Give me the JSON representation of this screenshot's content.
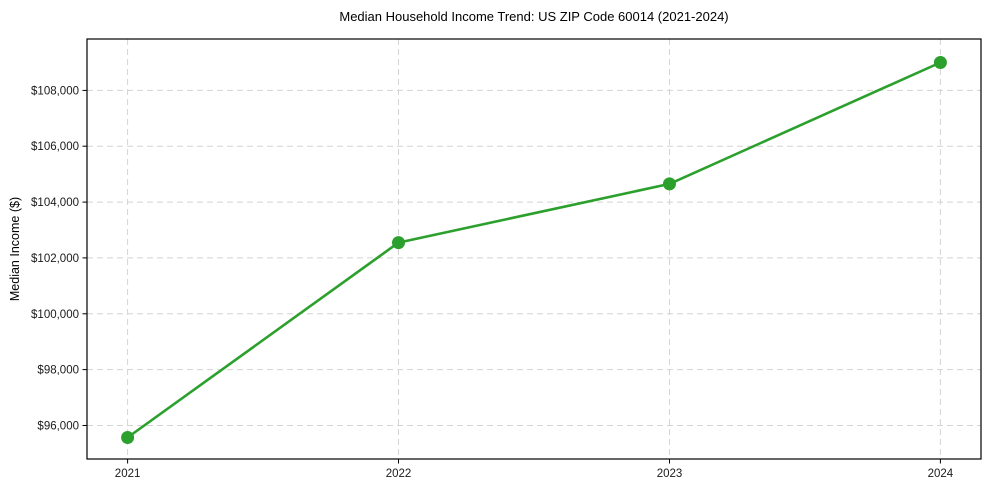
{
  "figure": {
    "title": "Median Household Income Trend: US ZIP Code 60014 (2021-2024)",
    "y_axis_label": "Median Income ($)"
  },
  "chart_data": {
    "type": "line",
    "title": "Median Household Income Trend: US ZIP Code 60014 (2021-2024)",
    "xlabel": "",
    "ylabel": "Median Income ($)",
    "x": [
      2021,
      2022,
      2023,
      2024
    ],
    "x_labels": [
      "2021",
      "2022",
      "2023",
      "2024"
    ],
    "values": [
      95570,
      102550,
      104650,
      109000
    ],
    "series_name": "Median Household Income",
    "xlim": [
      2020.85,
      2024.15
    ],
    "ylim": [
      94800,
      109840
    ],
    "yticks": [
      96000,
      98000,
      100000,
      102000,
      104000,
      106000,
      108000
    ],
    "ytick_labels": [
      "$96,000",
      "$98,000",
      "$100,000",
      "$102,000",
      "$104,000",
      "$106,000",
      "$108,000"
    ],
    "grid": true,
    "grid_style": "dashed",
    "legend": "none",
    "colors": {
      "line": "#2ca02c",
      "marker": "#2ca02c",
      "grid": "#d4d4d4",
      "axis": "#000000",
      "tick_text": "#1a1a1a",
      "background": "#ffffff"
    }
  }
}
